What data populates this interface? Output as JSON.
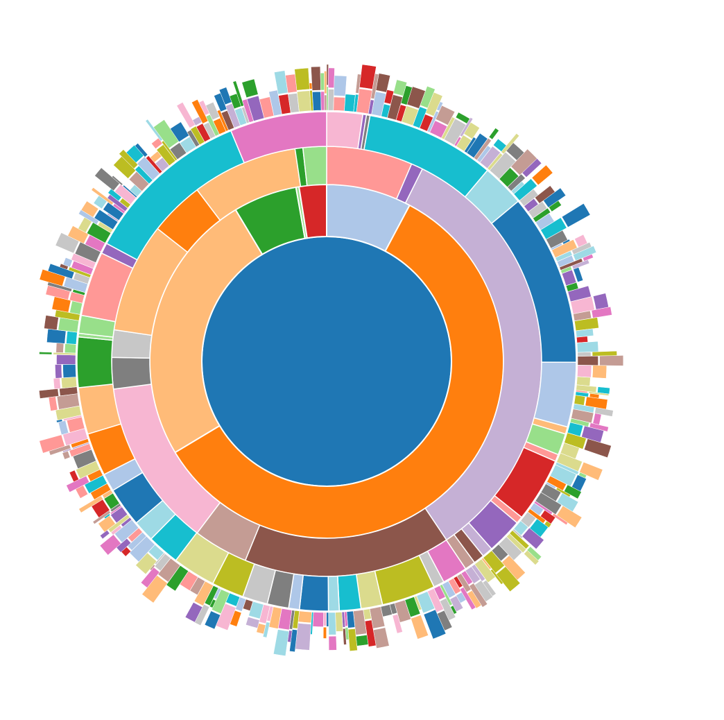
{
  "chart_data": {
    "type": "sunburst",
    "title": "",
    "palette": [
      "#1f77b4",
      "#aec7e8",
      "#ff7f0e",
      "#ffbb78",
      "#2ca02c",
      "#98df8a",
      "#d62728",
      "#ff9896",
      "#9467bd",
      "#c5b0d5",
      "#8c564b",
      "#c49c94",
      "#e377c2",
      "#f7b6d2",
      "#7f7f7f",
      "#c7c7c7",
      "#bcbd22",
      "#dbdb8d",
      "#17becf",
      "#9edae5"
    ],
    "rings": [
      {
        "level": 1,
        "segments": [
          {
            "color": "#1f77b4",
            "value": 360
          }
        ]
      },
      {
        "level": 2,
        "segments": [
          {
            "color": "#aec7e8",
            "value": 28
          },
          {
            "color": "#ff7f0e",
            "value": 211
          },
          {
            "color": "#ffbb78",
            "value": 90
          },
          {
            "color": "#2ca02c",
            "value": 21
          },
          {
            "color": "#98df8a",
            "value": 1
          },
          {
            "color": "#d62728",
            "value": 9
          }
        ]
      },
      {
        "level": 3,
        "segments": [
          {
            "color": "#ff9896",
            "value": 22
          },
          {
            "color": "#9467bd",
            "value": 3
          },
          {
            "color": "#c5b0d5",
            "value": 113
          },
          {
            "color": "#8c564b",
            "value": 53
          },
          {
            "color": "#c49c94",
            "value": 14
          },
          {
            "color": "#f7b6d2",
            "value": 43
          },
          {
            "color": "#7f7f7f",
            "value": 8
          },
          {
            "color": "#c7c7c7",
            "value": 7
          },
          {
            "color": "#ffbb78",
            "value": 28
          },
          {
            "color": "#ff7f0e",
            "value": 14
          },
          {
            "color": "#ffbb78",
            "value": 27
          },
          {
            "color": "#2ca02c",
            "value": 2
          },
          {
            "color": "#98df8a",
            "value": 6
          }
        ]
      },
      {
        "level": 4,
        "segments": [
          {
            "color": "#f7b6d2",
            "value": 10
          },
          {
            "color": "#9467bd",
            "value": 1
          },
          {
            "color": "#7f7f7f",
            "value": 1
          },
          {
            "color": "#17becf",
            "value": 36
          },
          {
            "color": "#9edae5",
            "value": 12
          },
          {
            "color": "#1f77b4",
            "value": 48
          },
          {
            "color": "#aec7e8",
            "value": 18
          },
          {
            "color": "#ffbb78",
            "value": 2
          },
          {
            "color": "#98df8a",
            "value": 6
          },
          {
            "color": "#ff9896",
            "value": 2
          },
          {
            "color": "#d62728",
            "value": 18
          },
          {
            "color": "#ff9896",
            "value": 2
          },
          {
            "color": "#9467bd",
            "value": 10
          },
          {
            "color": "#c5b0d5",
            "value": 3
          },
          {
            "color": "#8c564b",
            "value": 3
          },
          {
            "color": "#c49c94",
            "value": 3
          },
          {
            "color": "#e377c2",
            "value": 7
          },
          {
            "color": "#c7c7c7",
            "value": 3
          },
          {
            "color": "#bcbd22",
            "value": 15
          },
          {
            "color": "#dbdb8d",
            "value": 6
          },
          {
            "color": "#17becf",
            "value": 6
          },
          {
            "color": "#9edae5",
            "value": 3
          },
          {
            "color": "#1f77b4",
            "value": 8
          },
          {
            "color": "#aec7e8",
            "value": 3
          },
          {
            "color": "#7f7f7f",
            "value": 6
          },
          {
            "color": "#c7c7c7",
            "value": 7
          },
          {
            "color": "#bcbd22",
            "value": 9
          },
          {
            "color": "#dbdb8d",
            "value": 12
          },
          {
            "color": "#17becf",
            "value": 9
          },
          {
            "color": "#9edae5",
            "value": 6
          },
          {
            "color": "#1f77b4",
            "value": 11
          },
          {
            "color": "#aec7e8",
            "value": 5
          },
          {
            "color": "#ff7f0e",
            "value": 12
          },
          {
            "color": "#ffbb78",
            "value": 13
          },
          {
            "color": "#2ca02c",
            "value": 14
          },
          {
            "color": "#98df8a",
            "value": 1
          },
          {
            "color": "#98df8a",
            "value": 5
          },
          {
            "color": "#ff9896",
            "value": 18
          },
          {
            "color": "#9467bd",
            "value": 3
          },
          {
            "color": "#17becf",
            "value": 47
          },
          {
            "color": "#e377c2",
            "value": 27
          }
        ]
      }
    ],
    "outer_band": {
      "note": "",
      "values": []
    }
  }
}
